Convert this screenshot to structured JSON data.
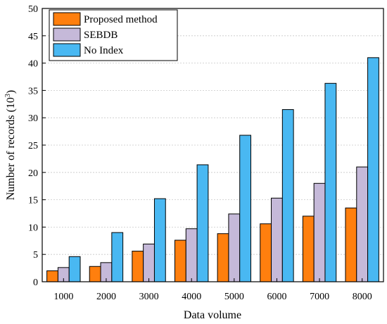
{
  "chart_data": {
    "type": "bar",
    "title": "",
    "xlabel": "Data volume",
    "ylabel": "Number of records (10",
    "ylabel_sup": "3",
    "ylabel_tail": ")",
    "categories": [
      "1000",
      "2000",
      "3000",
      "4000",
      "5000",
      "6000",
      "7000",
      "8000"
    ],
    "series": [
      {
        "name": "Proposed method",
        "color": "#ff7f0e",
        "values": [
          2.0,
          2.8,
          5.6,
          7.6,
          8.8,
          10.6,
          12.0,
          13.5
        ]
      },
      {
        "name": "SEBDB",
        "color": "#c5b9d9",
        "values": [
          2.6,
          3.5,
          6.9,
          9.7,
          12.4,
          15.3,
          18.0,
          21.0
        ]
      },
      {
        "name": "No Index",
        "color": "#49b8f2",
        "values": [
          4.6,
          9.0,
          15.2,
          21.4,
          26.8,
          31.5,
          36.3,
          41.0
        ]
      }
    ],
    "ylim": [
      0,
      50
    ],
    "yticks": [
      0,
      5,
      10,
      15,
      20,
      25,
      30,
      35,
      40,
      45,
      50
    ],
    "grid": "horizontal-dotted",
    "legend_position": "top-left"
  }
}
